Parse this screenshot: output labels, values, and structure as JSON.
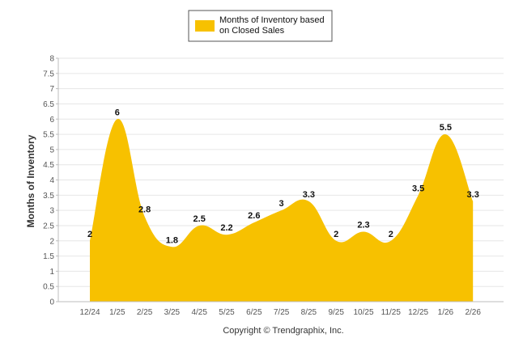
{
  "chart_data": {
    "type": "area",
    "categories": [
      "12/24",
      "1/25",
      "2/25",
      "3/25",
      "4/25",
      "5/25",
      "6/25",
      "7/25",
      "8/25",
      "9/25",
      "10/25",
      "11/25",
      "12/25",
      "1/26",
      "2/26"
    ],
    "series": [
      {
        "name": "Months of Inventory based on Closed Sales",
        "values": [
          2,
          6,
          2.8,
          1.8,
          2.5,
          2.2,
          2.6,
          3,
          3.3,
          2,
          2.3,
          2,
          3.5,
          5.5,
          3.3
        ],
        "labels": [
          "2",
          "6",
          "2.8",
          "1.8",
          "2.5",
          "2.2",
          "2.6",
          "3",
          "3.3",
          "2",
          "2.3",
          "2",
          "3.5",
          "5.5",
          "3.3"
        ],
        "color": "#F7C100"
      }
    ],
    "legend_lines": [
      "Months of Inventory based",
      "on Closed Sales"
    ],
    "ylabel": "Months of Inventory",
    "ylim": [
      0,
      8
    ],
    "yticks": [
      "0",
      "0.5",
      "1",
      "1.5",
      "2",
      "2.5",
      "3",
      "3.5",
      "4",
      "4.5",
      "5",
      "5.5",
      "6",
      "6.5",
      "7",
      "7.5",
      "8"
    ],
    "grid": true,
    "legend_position": "top-center"
  },
  "footer": {
    "credit": "Copyright © Trendgraphix, Inc."
  },
  "colors": {
    "grid": "#e6e6e6",
    "axis": "#bdbdbd",
    "legend_border": "#555555"
  }
}
